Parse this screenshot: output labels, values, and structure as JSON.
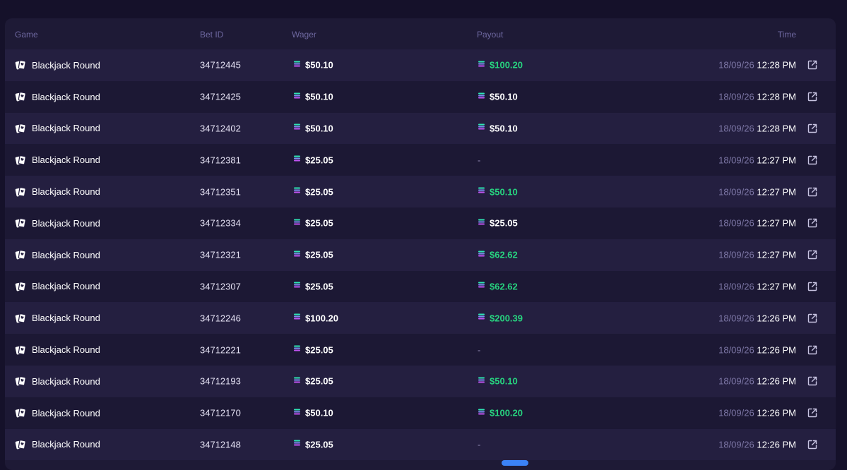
{
  "table": {
    "headers": {
      "game": "Game",
      "bet_id": "Bet ID",
      "wager": "Wager",
      "payout": "Payout",
      "time": "Time"
    },
    "rows": [
      {
        "game": "Blackjack Round",
        "bet_id": "34712445",
        "wager": "$50.10",
        "payout": "$100.20",
        "payout_state": "win",
        "date": "18/09/26",
        "time": "12:28 PM"
      },
      {
        "game": "Blackjack Round",
        "bet_id": "34712425",
        "wager": "$50.10",
        "payout": "$50.10",
        "payout_state": "push",
        "date": "18/09/26",
        "time": "12:28 PM"
      },
      {
        "game": "Blackjack Round",
        "bet_id": "34712402",
        "wager": "$50.10",
        "payout": "$50.10",
        "payout_state": "push",
        "date": "18/09/26",
        "time": "12:28 PM"
      },
      {
        "game": "Blackjack Round",
        "bet_id": "34712381",
        "wager": "$25.05",
        "payout": "-",
        "payout_state": "loss",
        "date": "18/09/26",
        "time": "12:27 PM"
      },
      {
        "game": "Blackjack Round",
        "bet_id": "34712351",
        "wager": "$25.05",
        "payout": "$50.10",
        "payout_state": "win",
        "date": "18/09/26",
        "time": "12:27 PM"
      },
      {
        "game": "Blackjack Round",
        "bet_id": "34712334",
        "wager": "$25.05",
        "payout": "$25.05",
        "payout_state": "push",
        "date": "18/09/26",
        "time": "12:27 PM"
      },
      {
        "game": "Blackjack Round",
        "bet_id": "34712321",
        "wager": "$25.05",
        "payout": "$62.62",
        "payout_state": "win",
        "date": "18/09/26",
        "time": "12:27 PM"
      },
      {
        "game": "Blackjack Round",
        "bet_id": "34712307",
        "wager": "$25.05",
        "payout": "$62.62",
        "payout_state": "win",
        "date": "18/09/26",
        "time": "12:27 PM"
      },
      {
        "game": "Blackjack Round",
        "bet_id": "34712246",
        "wager": "$100.20",
        "payout": "$200.39",
        "payout_state": "win",
        "date": "18/09/26",
        "time": "12:26 PM"
      },
      {
        "game": "Blackjack Round",
        "bet_id": "34712221",
        "wager": "$25.05",
        "payout": "-",
        "payout_state": "loss",
        "date": "18/09/26",
        "time": "12:26 PM"
      },
      {
        "game": "Blackjack Round",
        "bet_id": "34712193",
        "wager": "$25.05",
        "payout": "$50.10",
        "payout_state": "win",
        "date": "18/09/26",
        "time": "12:26 PM"
      },
      {
        "game": "Blackjack Round",
        "bet_id": "34712170",
        "wager": "$50.10",
        "payout": "$100.20",
        "payout_state": "win",
        "date": "18/09/26",
        "time": "12:26 PM"
      },
      {
        "game": "Blackjack Round",
        "bet_id": "34712148",
        "wager": "$25.05",
        "payout": "-",
        "payout_state": "loss",
        "date": "18/09/26",
        "time": "12:26 PM"
      }
    ]
  },
  "icons": {
    "game": "playing-cards-icon",
    "currency": "solana-coin-icon",
    "open": "external-link-icon"
  },
  "colors": {
    "win": "#27d37f",
    "push": "#ffffff",
    "loss": "#8f89b3"
  }
}
